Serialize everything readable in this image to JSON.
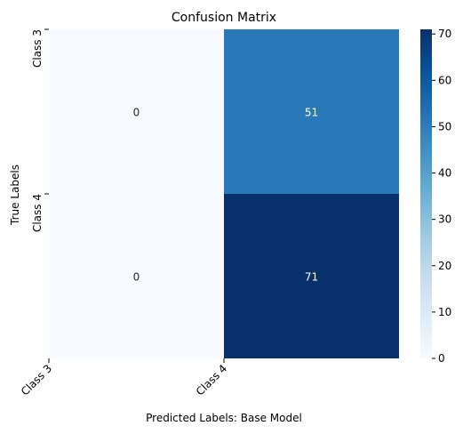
{
  "chart_data": {
    "type": "heatmap",
    "title": "Confusion Matrix",
    "xlabel": "Predicted Labels: Base Model",
    "ylabel": "True Labels",
    "x_categories": [
      "Class 3",
      "Class 4"
    ],
    "y_categories": [
      "Class 3",
      "Class 4"
    ],
    "values": [
      [
        0,
        51
      ],
      [
        0,
        71
      ]
    ],
    "colormap": "Blues",
    "colorbar": {
      "min": 0,
      "max": 71,
      "ticks": [
        0,
        10,
        20,
        30,
        40,
        50,
        60,
        70
      ]
    },
    "grid": false,
    "legend": "colorbar-right"
  }
}
